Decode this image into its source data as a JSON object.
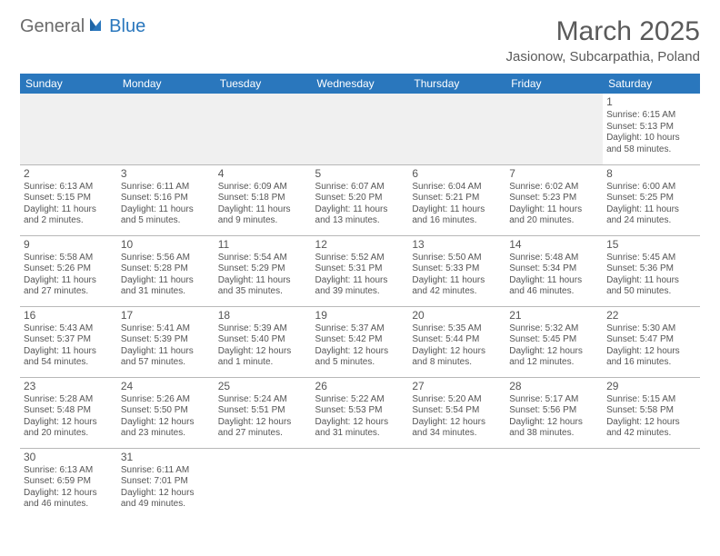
{
  "logo": {
    "part1": "General",
    "part2": "Blue"
  },
  "title": "March 2025",
  "location": "Jasionow, Subcarpathia, Poland",
  "colors": {
    "header_bg": "#2a77bd",
    "header_fg": "#ffffff",
    "text": "#555555",
    "border": "#b8b8b8",
    "empty_bg": "#f0f0f0",
    "page_bg": "#ffffff",
    "logo_gray": "#6b6b6b",
    "logo_blue": "#2a77bd"
  },
  "weekdays": [
    "Sunday",
    "Monday",
    "Tuesday",
    "Wednesday",
    "Thursday",
    "Friday",
    "Saturday"
  ],
  "weeks": [
    [
      null,
      null,
      null,
      null,
      null,
      null,
      {
        "n": "1",
        "sr": "Sunrise: 6:15 AM",
        "ss": "Sunset: 5:13 PM",
        "dl": "Daylight: 10 hours and 58 minutes."
      }
    ],
    [
      {
        "n": "2",
        "sr": "Sunrise: 6:13 AM",
        "ss": "Sunset: 5:15 PM",
        "dl": "Daylight: 11 hours and 2 minutes."
      },
      {
        "n": "3",
        "sr": "Sunrise: 6:11 AM",
        "ss": "Sunset: 5:16 PM",
        "dl": "Daylight: 11 hours and 5 minutes."
      },
      {
        "n": "4",
        "sr": "Sunrise: 6:09 AM",
        "ss": "Sunset: 5:18 PM",
        "dl": "Daylight: 11 hours and 9 minutes."
      },
      {
        "n": "5",
        "sr": "Sunrise: 6:07 AM",
        "ss": "Sunset: 5:20 PM",
        "dl": "Daylight: 11 hours and 13 minutes."
      },
      {
        "n": "6",
        "sr": "Sunrise: 6:04 AM",
        "ss": "Sunset: 5:21 PM",
        "dl": "Daylight: 11 hours and 16 minutes."
      },
      {
        "n": "7",
        "sr": "Sunrise: 6:02 AM",
        "ss": "Sunset: 5:23 PM",
        "dl": "Daylight: 11 hours and 20 minutes."
      },
      {
        "n": "8",
        "sr": "Sunrise: 6:00 AM",
        "ss": "Sunset: 5:25 PM",
        "dl": "Daylight: 11 hours and 24 minutes."
      }
    ],
    [
      {
        "n": "9",
        "sr": "Sunrise: 5:58 AM",
        "ss": "Sunset: 5:26 PM",
        "dl": "Daylight: 11 hours and 27 minutes."
      },
      {
        "n": "10",
        "sr": "Sunrise: 5:56 AM",
        "ss": "Sunset: 5:28 PM",
        "dl": "Daylight: 11 hours and 31 minutes."
      },
      {
        "n": "11",
        "sr": "Sunrise: 5:54 AM",
        "ss": "Sunset: 5:29 PM",
        "dl": "Daylight: 11 hours and 35 minutes."
      },
      {
        "n": "12",
        "sr": "Sunrise: 5:52 AM",
        "ss": "Sunset: 5:31 PM",
        "dl": "Daylight: 11 hours and 39 minutes."
      },
      {
        "n": "13",
        "sr": "Sunrise: 5:50 AM",
        "ss": "Sunset: 5:33 PM",
        "dl": "Daylight: 11 hours and 42 minutes."
      },
      {
        "n": "14",
        "sr": "Sunrise: 5:48 AM",
        "ss": "Sunset: 5:34 PM",
        "dl": "Daylight: 11 hours and 46 minutes."
      },
      {
        "n": "15",
        "sr": "Sunrise: 5:45 AM",
        "ss": "Sunset: 5:36 PM",
        "dl": "Daylight: 11 hours and 50 minutes."
      }
    ],
    [
      {
        "n": "16",
        "sr": "Sunrise: 5:43 AM",
        "ss": "Sunset: 5:37 PM",
        "dl": "Daylight: 11 hours and 54 minutes."
      },
      {
        "n": "17",
        "sr": "Sunrise: 5:41 AM",
        "ss": "Sunset: 5:39 PM",
        "dl": "Daylight: 11 hours and 57 minutes."
      },
      {
        "n": "18",
        "sr": "Sunrise: 5:39 AM",
        "ss": "Sunset: 5:40 PM",
        "dl": "Daylight: 12 hours and 1 minute."
      },
      {
        "n": "19",
        "sr": "Sunrise: 5:37 AM",
        "ss": "Sunset: 5:42 PM",
        "dl": "Daylight: 12 hours and 5 minutes."
      },
      {
        "n": "20",
        "sr": "Sunrise: 5:35 AM",
        "ss": "Sunset: 5:44 PM",
        "dl": "Daylight: 12 hours and 8 minutes."
      },
      {
        "n": "21",
        "sr": "Sunrise: 5:32 AM",
        "ss": "Sunset: 5:45 PM",
        "dl": "Daylight: 12 hours and 12 minutes."
      },
      {
        "n": "22",
        "sr": "Sunrise: 5:30 AM",
        "ss": "Sunset: 5:47 PM",
        "dl": "Daylight: 12 hours and 16 minutes."
      }
    ],
    [
      {
        "n": "23",
        "sr": "Sunrise: 5:28 AM",
        "ss": "Sunset: 5:48 PM",
        "dl": "Daylight: 12 hours and 20 minutes."
      },
      {
        "n": "24",
        "sr": "Sunrise: 5:26 AM",
        "ss": "Sunset: 5:50 PM",
        "dl": "Daylight: 12 hours and 23 minutes."
      },
      {
        "n": "25",
        "sr": "Sunrise: 5:24 AM",
        "ss": "Sunset: 5:51 PM",
        "dl": "Daylight: 12 hours and 27 minutes."
      },
      {
        "n": "26",
        "sr": "Sunrise: 5:22 AM",
        "ss": "Sunset: 5:53 PM",
        "dl": "Daylight: 12 hours and 31 minutes."
      },
      {
        "n": "27",
        "sr": "Sunrise: 5:20 AM",
        "ss": "Sunset: 5:54 PM",
        "dl": "Daylight: 12 hours and 34 minutes."
      },
      {
        "n": "28",
        "sr": "Sunrise: 5:17 AM",
        "ss": "Sunset: 5:56 PM",
        "dl": "Daylight: 12 hours and 38 minutes."
      },
      {
        "n": "29",
        "sr": "Sunrise: 5:15 AM",
        "ss": "Sunset: 5:58 PM",
        "dl": "Daylight: 12 hours and 42 minutes."
      }
    ],
    [
      {
        "n": "30",
        "sr": "Sunrise: 6:13 AM",
        "ss": "Sunset: 6:59 PM",
        "dl": "Daylight: 12 hours and 46 minutes."
      },
      {
        "n": "31",
        "sr": "Sunrise: 6:11 AM",
        "ss": "Sunset: 7:01 PM",
        "dl": "Daylight: 12 hours and 49 minutes."
      },
      null,
      null,
      null,
      null,
      null
    ]
  ]
}
